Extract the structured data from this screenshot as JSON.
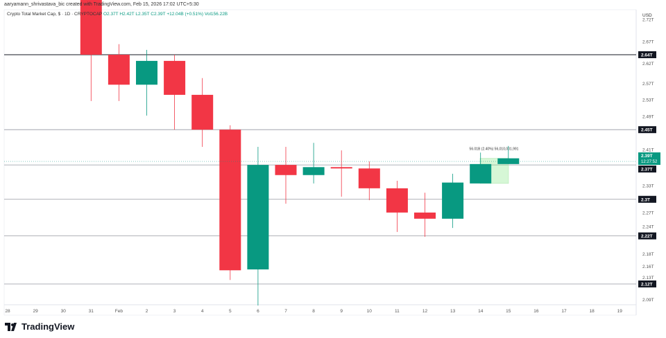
{
  "header": {
    "credit": "aaryamann_shrivastava_bic created with TradingView.com, Feb 15, 2026 17:02 UTC+5:30"
  },
  "legend": {
    "symbol": "Crypto Total Market Cap, $ · 1D · CRYPTOCAP",
    "open": "O2.37T",
    "high": "H2.42T",
    "low": "L2.35T",
    "close": "C2.39T",
    "change": "+12.04B (+0.51%)",
    "volume": "Vol156.22B"
  },
  "axis": {
    "currency": "USD",
    "price_ticks": [
      {
        "v": 2.72,
        "t": "2.72T"
      },
      {
        "v": 2.67,
        "t": "2.67T"
      },
      {
        "v": 2.62,
        "t": "2.62T"
      },
      {
        "v": 2.575,
        "t": "2.57T"
      },
      {
        "v": 2.538,
        "t": "2.53T"
      },
      {
        "v": 2.5,
        "t": "2.49T"
      },
      {
        "v": 2.425,
        "t": "2.41T"
      },
      {
        "v": 2.343,
        "t": "2.33T"
      },
      {
        "v": 2.282,
        "t": "2.27T"
      },
      {
        "v": 2.25,
        "t": "2.24T"
      },
      {
        "v": 2.188,
        "t": "2.18T"
      },
      {
        "v": 2.16,
        "t": "2.16T"
      },
      {
        "v": 2.135,
        "t": "2.13T"
      },
      {
        "v": 2.085,
        "t": "2.09T"
      }
    ],
    "date_ticks": [
      "28",
      "29",
      "30",
      "31",
      "Feb",
      "2",
      "3",
      "4",
      "5",
      "6",
      "7",
      "8",
      "9",
      "10",
      "11",
      "12",
      "13",
      "14",
      "15",
      "16",
      "17",
      "18",
      "19"
    ]
  },
  "levels": [
    {
      "v": 2.64,
      "t": "2.64T",
      "strong": true
    },
    {
      "v": 2.47,
      "t": "2.45T"
    },
    {
      "v": 2.39,
      "t": "2.37T"
    },
    {
      "v": 2.312,
      "t": "2.3T"
    },
    {
      "v": 2.229,
      "t": "2.22T"
    },
    {
      "v": 2.12,
      "t": "2.12T"
    }
  ],
  "last_price": {
    "price": "2.39T",
    "countdown": "12:27:52",
    "v": 2.398
  },
  "measure": {
    "label": "56.01B (2.40%) 56,010,001,991",
    "from": 2.348,
    "to": 2.405
  },
  "colors": {
    "up": "#089981",
    "down": "#f23645",
    "level": "#131722"
  },
  "candles": [
    {
      "d": "31",
      "o": 2.78,
      "h": 2.8,
      "l": 2.535,
      "c": 2.64
    },
    {
      "d": "Feb",
      "o": 2.64,
      "h": 2.664,
      "l": 2.535,
      "c": 2.572
    },
    {
      "d": "2",
      "o": 2.572,
      "h": 2.651,
      "l": 2.502,
      "c": 2.626
    },
    {
      "d": "3",
      "o": 2.626,
      "h": 2.64,
      "l": 2.47,
      "c": 2.549
    },
    {
      "d": "4",
      "o": 2.549,
      "h": 2.587,
      "l": 2.431,
      "c": 2.47
    },
    {
      "d": "5",
      "o": 2.47,
      "h": 2.48,
      "l": 2.129,
      "c": 2.151
    },
    {
      "d": "6",
      "o": 2.153,
      "h": 2.431,
      "l": 2.071,
      "c": 2.39
    },
    {
      "d": "7",
      "o": 2.39,
      "h": 2.431,
      "l": 2.302,
      "c": 2.367
    },
    {
      "d": "8",
      "o": 2.367,
      "h": 2.44,
      "l": 2.348,
      "c": 2.385
    },
    {
      "d": "9",
      "o": 2.385,
      "h": 2.423,
      "l": 2.318,
      "c": 2.382
    },
    {
      "d": "10",
      "o": 2.382,
      "h": 2.398,
      "l": 2.31,
      "c": 2.337
    },
    {
      "d": "11",
      "o": 2.337,
      "h": 2.354,
      "l": 2.238,
      "c": 2.282
    },
    {
      "d": "12",
      "o": 2.282,
      "h": 2.327,
      "l": 2.227,
      "c": 2.268
    },
    {
      "d": "13",
      "o": 2.268,
      "h": 2.37,
      "l": 2.247,
      "c": 2.35
    },
    {
      "d": "14",
      "o": 2.348,
      "h": 2.418,
      "l": 2.348,
      "c": 2.392
    },
    {
      "d": "15",
      "o": 2.392,
      "h": 2.433,
      "l": 2.392,
      "c": 2.405
    }
  ],
  "footer": {
    "brand": "TradingView"
  }
}
